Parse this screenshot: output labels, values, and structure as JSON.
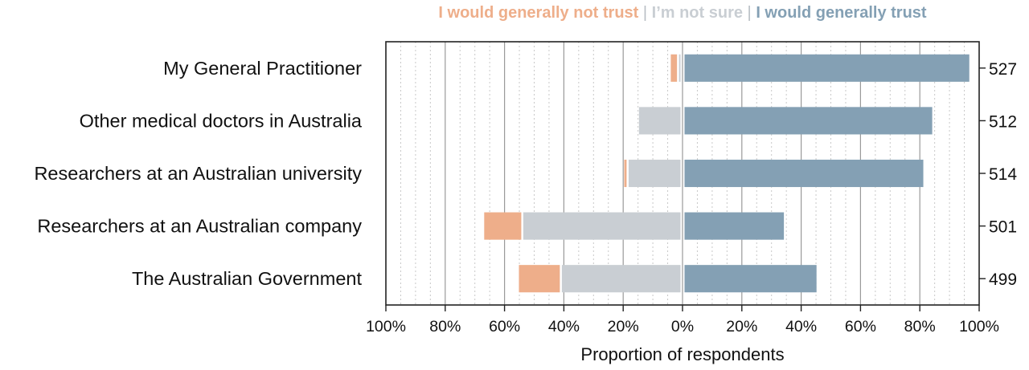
{
  "chart_data": {
    "type": "bar",
    "orientation": "horizontal",
    "stacked": "diverging",
    "legend": {
      "position": "top",
      "separator": "|",
      "entries": [
        {
          "key": "not_trust",
          "label": "I would generally not trust",
          "color": "#eeae8a"
        },
        {
          "key": "not_sure",
          "label": "I’m not sure",
          "color": "#c9ced3"
        },
        {
          "key": "trust",
          "label": "I would generally trust",
          "color": "#84a0b4"
        }
      ]
    },
    "categories": [
      "My General Practitioner",
      "Other medical doctors in Australia",
      "Researchers at an Australian university",
      "Researchers at an Australian company",
      "The Australian Government"
    ],
    "counts": [
      "527",
      "512",
      "514",
      "501",
      "499"
    ],
    "series": [
      {
        "key": "not_trust",
        "name": "I would generally not trust",
        "color": "#eeae8a",
        "values": [
          2.1,
          0,
          0.8,
          12.5,
          13.8
        ]
      },
      {
        "key": "not_sure",
        "name": "I’m not sure",
        "color": "#c9ced3",
        "values": [
          0.5,
          14,
          17.5,
          53,
          40
        ]
      },
      {
        "key": "trust",
        "name": "I would generally trust",
        "color": "#84a0b4",
        "values": [
          96,
          83.5,
          80.5,
          33.5,
          44.5
        ]
      }
    ],
    "xlim": [
      -100,
      100
    ],
    "xticks": [
      -100,
      -80,
      -60,
      -40,
      -20,
      0,
      20,
      40,
      60,
      80,
      100
    ],
    "xtick_labels": [
      "100%",
      "80%",
      "60%",
      "40%",
      "20%",
      "0%",
      "20%",
      "40%",
      "60%",
      "80%",
      "100%"
    ],
    "xlabel": "Proportion of respondents",
    "ylabel": "",
    "grid": true
  }
}
